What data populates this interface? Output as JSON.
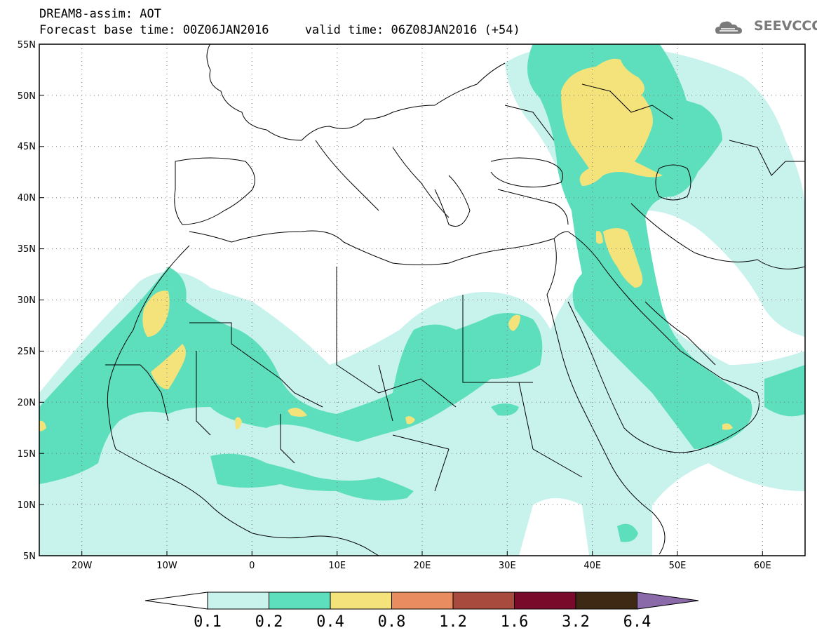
{
  "header": {
    "line1": "DREAM8-assim: AOT",
    "line2": "Forecast base time: 00Z06JAN2016     valid time: 06Z08JAN2016 (+54)"
  },
  "logo": {
    "text": "SEEVCCC",
    "icon": "cloud-icon"
  },
  "map": {
    "lon_range": [
      -25,
      65
    ],
    "lat_range": [
      5,
      55
    ],
    "lat_ticks": [
      "5N",
      "10N",
      "15N",
      "20N",
      "25N",
      "30N",
      "35N",
      "40N",
      "45N",
      "50N",
      "55N"
    ],
    "lon_ticks": [
      "20W",
      "10W",
      "0",
      "10E",
      "20E",
      "30E",
      "40E",
      "50E",
      "60E"
    ],
    "grid": "dotted"
  },
  "colorbar": {
    "labels": [
      "0.1",
      "0.2",
      "0.4",
      "0.8",
      "1.2",
      "1.6",
      "3.2",
      "6.4"
    ],
    "colors": [
      "#ffffff",
      "#c8f2ec",
      "#5ddfbd",
      "#f4e27a",
      "#e98c60",
      "#a84a3e",
      "#7a0a2a",
      "#3e2a14",
      "#8a6aa8"
    ]
  }
}
